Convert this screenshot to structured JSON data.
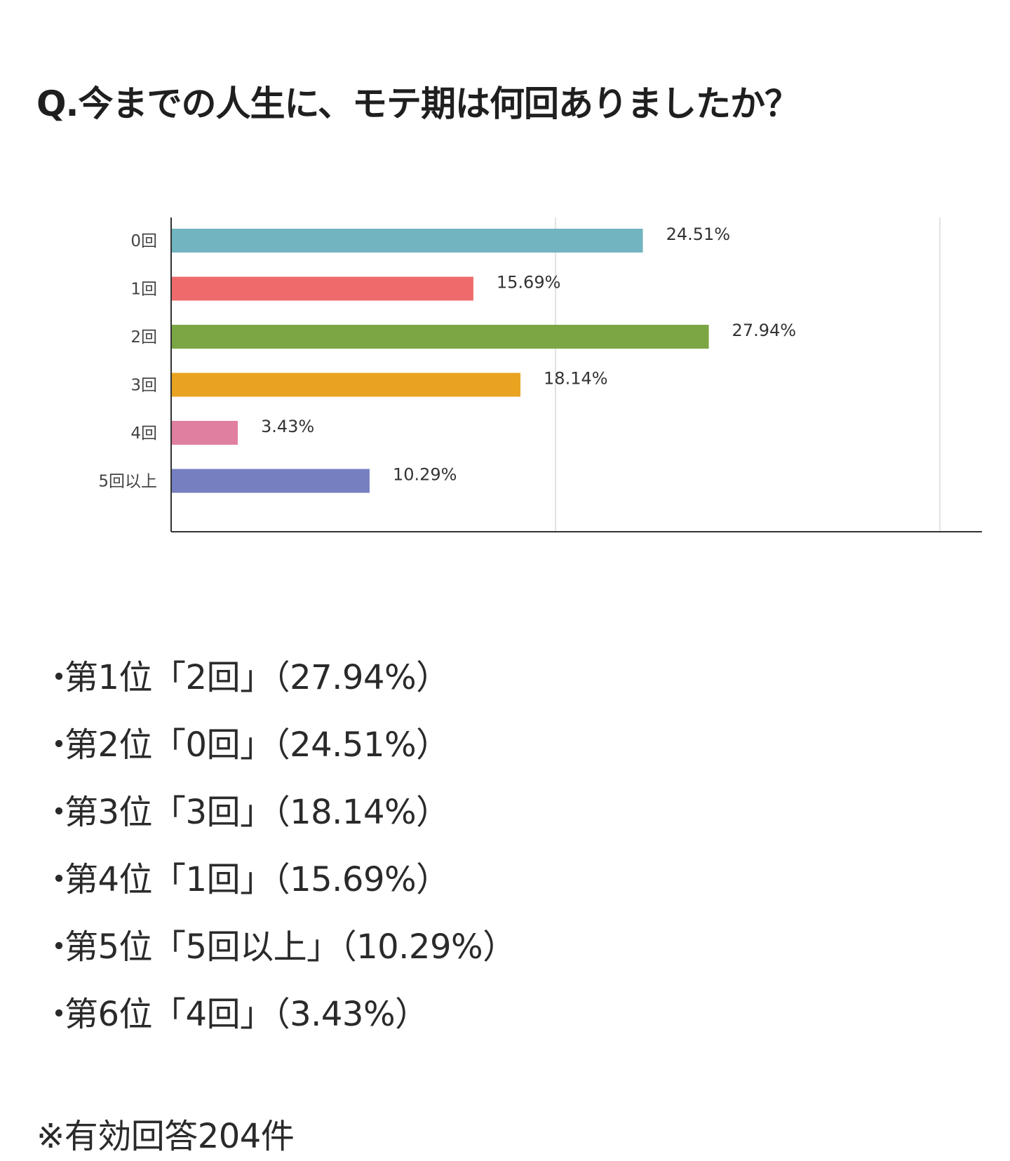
{
  "title": "Q.今までの人生に、モテ期は何回ありましたか？",
  "chart_data": {
    "type": "bar",
    "orientation": "horizontal",
    "categories": [
      "0回",
      "1回",
      "2回",
      "3回",
      "4回",
      "5回以上"
    ],
    "values": [
      24.51,
      15.69,
      27.94,
      18.14,
      3.43,
      10.29
    ],
    "value_labels": [
      "24.51%",
      "15.69%",
      "27.94%",
      "18.14%",
      "3.43%",
      "10.29%"
    ],
    "colors": [
      "#73b4c1",
      "#ef6b6b",
      "#7ba644",
      "#e9a321",
      "#e07fa0",
      "#767fbf"
    ],
    "xticks": [
      0,
      20,
      40
    ],
    "xtick_labels": [
      "0%",
      "20%",
      "40%"
    ],
    "xlim": [
      0,
      42
    ],
    "grid": true,
    "legend": "none"
  },
  "ranking": [
    {
      "bullet": "・",
      "text": "第1位「2回」（27.94%）"
    },
    {
      "bullet": "・",
      "text": "第2位「0回」（24.51%）"
    },
    {
      "bullet": "・",
      "text": "第3位「3回」（18.14%）"
    },
    {
      "bullet": "・",
      "text": "第4位「1回」（15.69%）"
    },
    {
      "bullet": "・",
      "text": "第5位「5回以上」（10.29%）"
    },
    {
      "bullet": "・",
      "text": "第6位「4回」（3.43%）"
    }
  ],
  "note": "※有効回答204件"
}
